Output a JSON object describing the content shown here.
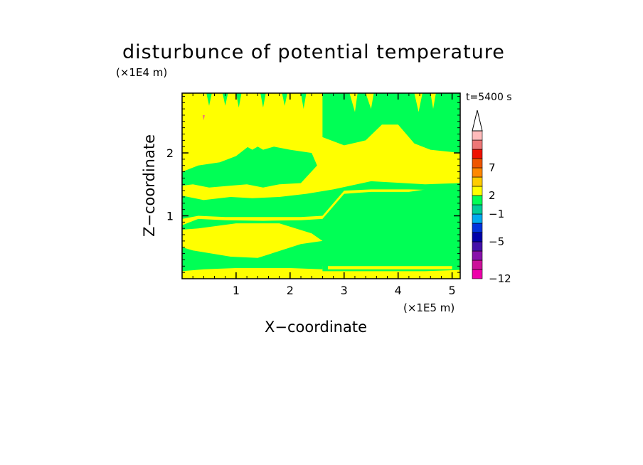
{
  "chart_data": {
    "type": "heatmap",
    "title": "disturbunce of potential temperature",
    "xlabel": "X−coordinate",
    "ylabel": "Z−coordinate",
    "x_unit_label": "(×1E5 m)",
    "y_unit_label": "(×1E4 m)",
    "time_label": "t=5400 s",
    "xlim": [
      0,
      5.15
    ],
    "ylim": [
      0,
      2.95
    ],
    "x_ticks": [
      "1",
      "2",
      "3",
      "4",
      "5"
    ],
    "y_ticks": [
      "1",
      "2"
    ],
    "x_tick_values": [
      1,
      2,
      3,
      4,
      5
    ],
    "y_tick_values": [
      1,
      2
    ],
    "colorbar": {
      "labels": [
        "7",
        "2",
        "−1",
        "−5",
        "−12"
      ],
      "label_values": [
        7,
        2,
        -1,
        -5,
        -12
      ],
      "levels_bottom_to_top": [
        {
          "color": "#ee00aa"
        },
        {
          "color": "#cc1199"
        },
        {
          "color": "#8811aa"
        },
        {
          "color": "#4411aa"
        },
        {
          "color": "#0000aa"
        },
        {
          "color": "#0033dd"
        },
        {
          "color": "#00aaee"
        },
        {
          "color": "#00cc99"
        },
        {
          "color": "#00ff55"
        },
        {
          "color": "#ffff00"
        },
        {
          "color": "#ffcc00"
        },
        {
          "color": "#ff8800"
        },
        {
          "color": "#ee5500"
        },
        {
          "color": "#ee1100"
        },
        {
          "color": "#ee7777"
        },
        {
          "color": "#ffbbbb"
        }
      ]
    },
    "field_colors": {
      "positive": "#ffff00",
      "negative": "#00ff55",
      "max_spot": "#ee7777"
    },
    "regions": [
      {
        "fill": "negative",
        "points": [
          [
            0,
            0.12
          ],
          [
            0.4,
            0.15
          ],
          [
            1.0,
            0.17
          ],
          [
            2.0,
            0.17
          ],
          [
            2.6,
            0.15
          ],
          [
            2.6,
            0.5
          ],
          [
            2.2,
            0.48
          ],
          [
            1.5,
            0.3
          ],
          [
            0.8,
            0.3
          ],
          [
            0.2,
            0.38
          ],
          [
            0,
            0.42
          ]
        ]
      },
      {
        "fill": "negative",
        "points": [
          [
            0,
            0.85
          ],
          [
            0.3,
            0.95
          ],
          [
            0.8,
            0.93
          ],
          [
            1.5,
            0.92
          ],
          [
            2.2,
            0.93
          ],
          [
            2.6,
            0.95
          ],
          [
            3.0,
            1.35
          ],
          [
            3.5,
            1.38
          ],
          [
            4.2,
            1.38
          ],
          [
            5.15,
            1.5
          ],
          [
            5.15,
            0.14
          ],
          [
            4.5,
            0.12
          ],
          [
            3.5,
            0.12
          ],
          [
            2.6,
            0.12
          ],
          [
            2.6,
            0.2
          ],
          [
            2.2,
            0.25
          ],
          [
            1.6,
            0.22
          ],
          [
            1.0,
            0.22
          ],
          [
            0.4,
            0.3
          ],
          [
            0,
            0.35
          ],
          [
            0,
            0.5
          ],
          [
            0.2,
            0.45
          ],
          [
            0.9,
            0.35
          ],
          [
            1.4,
            0.33
          ],
          [
            2.2,
            0.55
          ],
          [
            2.6,
            0.6
          ],
          [
            2.4,
            0.72
          ],
          [
            1.8,
            0.88
          ],
          [
            1.0,
            0.88
          ],
          [
            0.3,
            0.8
          ],
          [
            0,
            0.78
          ]
        ]
      },
      {
        "fill": "negative",
        "points": [
          [
            0,
            1.32
          ],
          [
            0.4,
            1.25
          ],
          [
            0.9,
            1.3
          ],
          [
            1.3,
            1.28
          ],
          [
            1.8,
            1.3
          ],
          [
            2.3,
            1.35
          ],
          [
            2.8,
            1.42
          ],
          [
            3.5,
            1.55
          ],
          [
            4.5,
            1.5
          ],
          [
            5.15,
            1.52
          ],
          [
            5.15,
            1.4
          ],
          [
            4.2,
            1.42
          ],
          [
            3.5,
            1.42
          ],
          [
            3.0,
            1.4
          ],
          [
            2.6,
            1.0
          ],
          [
            2.2,
            0.98
          ],
          [
            1.5,
            0.98
          ],
          [
            0.8,
            0.98
          ],
          [
            0.3,
            1.0
          ],
          [
            0,
            0.95
          ]
        ]
      },
      {
        "fill": "negative",
        "points": [
          [
            0,
            1.7
          ],
          [
            0.3,
            1.8
          ],
          [
            0.7,
            1.85
          ],
          [
            1.0,
            1.95
          ],
          [
            1.3,
            2.15
          ],
          [
            1.5,
            2.05
          ],
          [
            1.7,
            2.1
          ],
          [
            2.0,
            2.05
          ],
          [
            2.4,
            2.0
          ],
          [
            2.5,
            1.8
          ],
          [
            2.2,
            1.52
          ],
          [
            1.8,
            1.5
          ],
          [
            1.5,
            1.45
          ],
          [
            1.2,
            1.5
          ],
          [
            0.9,
            1.48
          ],
          [
            0.5,
            1.45
          ],
          [
            0.2,
            1.5
          ],
          [
            0,
            1.48
          ]
        ]
      },
      {
        "fill": "negative",
        "points": [
          [
            2.6,
            2.95
          ],
          [
            5.15,
            2.95
          ],
          [
            5.15,
            2.0
          ],
          [
            4.6,
            2.05
          ],
          [
            4.3,
            2.15
          ],
          [
            4.0,
            2.45
          ],
          [
            3.7,
            2.45
          ],
          [
            3.4,
            2.2
          ],
          [
            3.0,
            2.12
          ],
          [
            2.6,
            2.25
          ]
        ]
      },
      {
        "fill": "negative",
        "points": [
          [
            0.45,
            2.95
          ],
          [
            0.55,
            2.95
          ],
          [
            0.5,
            2.75
          ]
        ]
      },
      {
        "fill": "negative",
        "points": [
          [
            0.75,
            2.95
          ],
          [
            0.85,
            2.95
          ],
          [
            0.8,
            2.75
          ]
        ]
      },
      {
        "fill": "negative",
        "points": [
          [
            1.0,
            2.95
          ],
          [
            1.1,
            2.95
          ],
          [
            1.05,
            2.72
          ]
        ]
      },
      {
        "fill": "negative",
        "points": [
          [
            1.45,
            2.95
          ],
          [
            1.55,
            2.95
          ],
          [
            1.5,
            2.72
          ]
        ]
      },
      {
        "fill": "negative",
        "points": [
          [
            1.85,
            2.95
          ],
          [
            1.95,
            2.95
          ],
          [
            1.9,
            2.75
          ]
        ]
      },
      {
        "fill": "negative",
        "points": [
          [
            2.2,
            2.95
          ],
          [
            2.3,
            2.95
          ],
          [
            2.25,
            2.7
          ]
        ]
      },
      {
        "fill": "positive",
        "points": [
          [
            1.15,
            2.3
          ],
          [
            1.3,
            2.25
          ],
          [
            1.45,
            2.3
          ],
          [
            1.4,
            2.1
          ],
          [
            1.3,
            2.05
          ],
          [
            1.2,
            2.1
          ]
        ]
      },
      {
        "fill": "positive",
        "points": [
          [
            3.1,
            2.95
          ],
          [
            3.25,
            2.95
          ],
          [
            3.2,
            2.65
          ]
        ]
      },
      {
        "fill": "positive",
        "points": [
          [
            3.4,
            2.95
          ],
          [
            3.55,
            2.95
          ],
          [
            3.5,
            2.7
          ]
        ]
      },
      {
        "fill": "positive",
        "points": [
          [
            4.3,
            2.95
          ],
          [
            4.45,
            2.95
          ],
          [
            4.38,
            2.65
          ]
        ]
      },
      {
        "fill": "positive",
        "points": [
          [
            4.6,
            2.95
          ],
          [
            4.7,
            2.95
          ],
          [
            4.65,
            2.7
          ]
        ]
      },
      {
        "fill": "positive",
        "points": [
          [
            0.9,
            1.35
          ],
          [
            1.6,
            1.35
          ],
          [
            1.5,
            1.3
          ],
          [
            1.0,
            1.3
          ]
        ]
      },
      {
        "fill": "positive",
        "points": [
          [
            2.7,
            0.15
          ],
          [
            5.0,
            0.15
          ],
          [
            5.0,
            0.2
          ],
          [
            2.7,
            0.2
          ]
        ]
      },
      {
        "fill": "max_spot",
        "points": [
          [
            0.38,
            2.6
          ],
          [
            0.42,
            2.6
          ],
          [
            0.4,
            2.52
          ]
        ]
      }
    ]
  }
}
